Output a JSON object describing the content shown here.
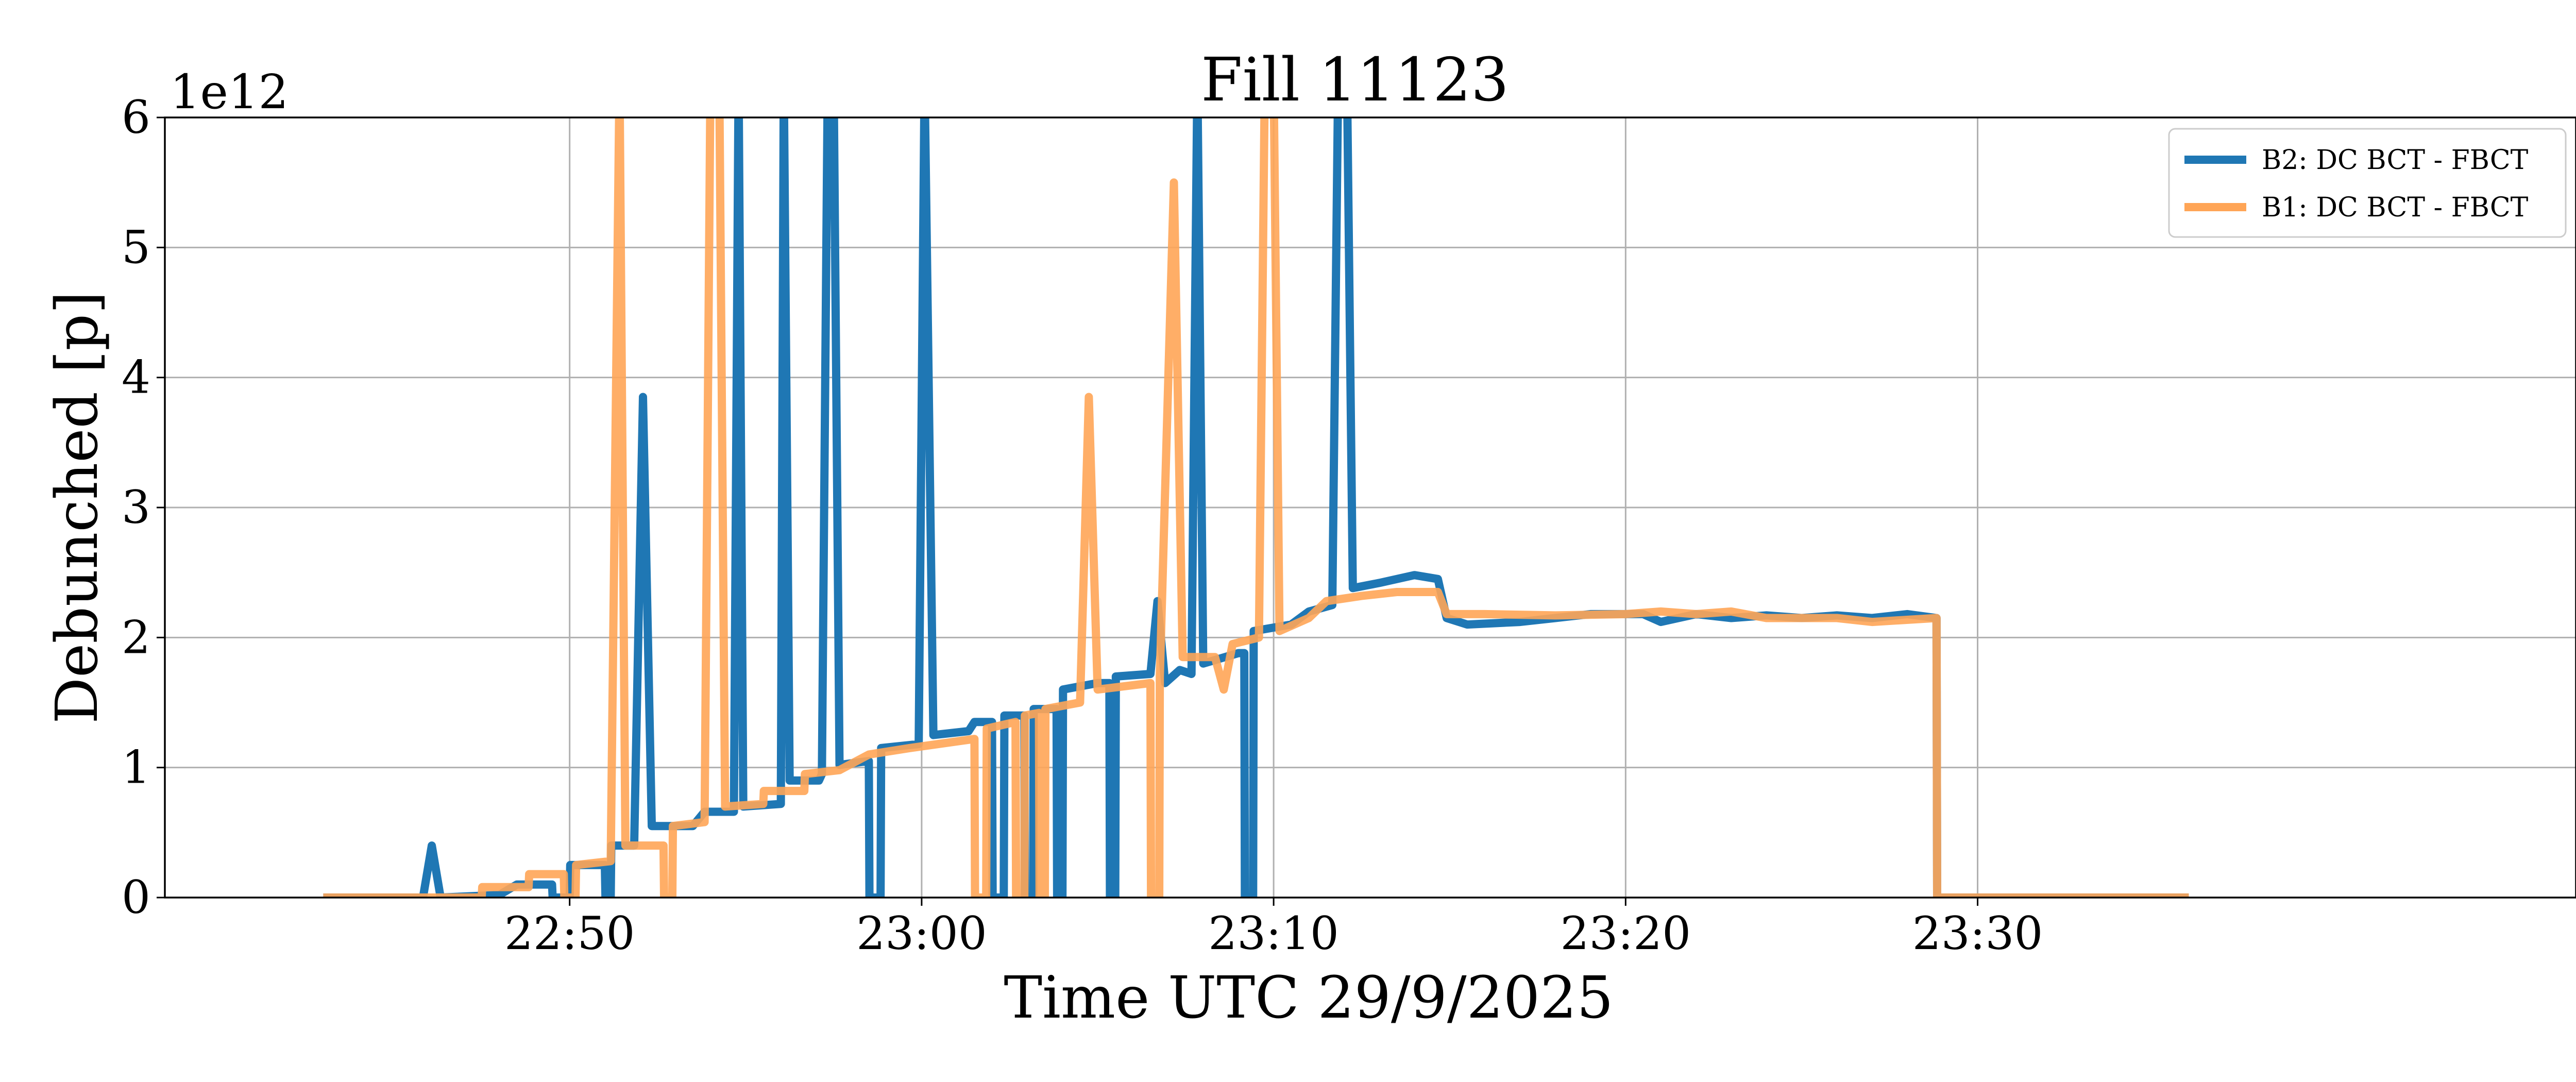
{
  "chart_data": {
    "type": "line",
    "title": "Fill 11123",
    "xlabel": "Time UTC 29/9/2025",
    "ylabel": "Debunched [p]",
    "y_offset_label": "1e12",
    "ylim": [
      0,
      6
    ],
    "xlim": [
      "22:38:30",
      "23:47:00"
    ],
    "yticks": [
      0,
      1,
      2,
      3,
      4,
      5,
      6
    ],
    "ytick_labels": [
      "0",
      "1",
      "2",
      "3",
      "4",
      "5",
      "6"
    ],
    "xticks": [
      "22:50",
      "23:00",
      "23:10",
      "23:20",
      "23:30"
    ],
    "grid": true,
    "legend_position": "top-right",
    "series": [
      {
        "name": "B2: DC BCT - FBCT",
        "color": "#1f77b4",
        "points": [
          [
            "22:43:00",
            0.0
          ],
          [
            "22:45:50",
            0.0
          ],
          [
            "22:46:05",
            0.4
          ],
          [
            "22:46:20",
            0.0
          ],
          [
            "22:48:00",
            0.02
          ],
          [
            "22:48:30",
            0.1
          ],
          [
            "22:49:30",
            0.1
          ],
          [
            "22:49:31",
            0.0
          ],
          [
            "22:50:00",
            0.0
          ],
          [
            "22:50:01",
            0.25
          ],
          [
            "22:51:00",
            0.25
          ],
          [
            "22:51:01",
            0.0
          ],
          [
            "22:51:10",
            0.0
          ],
          [
            "22:51:11",
            0.4
          ],
          [
            "22:51:50",
            0.4
          ],
          [
            "22:52:05",
            3.85
          ],
          [
            "22:52:20",
            0.55
          ],
          [
            "22:53:30",
            0.55
          ],
          [
            "22:53:50",
            0.66
          ],
          [
            "22:54:40",
            0.66
          ],
          [
            "22:54:48",
            6.3
          ],
          [
            "22:54:56",
            0.7
          ],
          [
            "22:56:00",
            0.72
          ],
          [
            "22:56:05",
            6.3
          ],
          [
            "22:56:15",
            0.9
          ],
          [
            "22:57:05",
            0.9
          ],
          [
            "22:57:10",
            0.95
          ],
          [
            "22:57:20",
            6.3
          ],
          [
            "22:57:30",
            6.3
          ],
          [
            "22:57:40",
            1.02
          ],
          [
            "22:58:30",
            1.05
          ],
          [
            "22:58:31",
            0.0
          ],
          [
            "22:58:50",
            0.0
          ],
          [
            "22:58:51",
            1.15
          ],
          [
            "22:59:55",
            1.18
          ],
          [
            "23:00:05",
            6.3
          ],
          [
            "23:00:20",
            1.25
          ],
          [
            "23:01:20",
            1.28
          ],
          [
            "23:01:30",
            1.35
          ],
          [
            "23:02:00",
            1.35
          ],
          [
            "23:02:01",
            0.0
          ],
          [
            "23:02:20",
            0.0
          ],
          [
            "23:02:21",
            1.4
          ],
          [
            "23:02:55",
            1.4
          ],
          [
            "23:02:56",
            0.0
          ],
          [
            "23:03:10",
            0.0
          ],
          [
            "23:03:11",
            1.45
          ],
          [
            "23:03:50",
            1.45
          ],
          [
            "23:03:51",
            0.0
          ],
          [
            "23:04:00",
            0.0
          ],
          [
            "23:04:01",
            1.6
          ],
          [
            "23:05:00",
            1.65
          ],
          [
            "23:05:20",
            1.65
          ],
          [
            "23:05:21",
            0.0
          ],
          [
            "23:05:30",
            0.0
          ],
          [
            "23:05:31",
            1.7
          ],
          [
            "23:06:30",
            1.72
          ],
          [
            "23:06:42",
            2.28
          ],
          [
            "23:06:55",
            1.65
          ],
          [
            "23:07:20",
            1.75
          ],
          [
            "23:07:40",
            1.72
          ],
          [
            "23:07:50",
            6.3
          ],
          [
            "23:08:00",
            1.8
          ],
          [
            "23:09:00",
            1.88
          ],
          [
            "23:09:10",
            1.88
          ],
          [
            "23:09:11",
            0.0
          ],
          [
            "23:09:25",
            0.0
          ],
          [
            "23:09:26",
            2.05
          ],
          [
            "23:10:30",
            2.1
          ],
          [
            "23:11:00",
            2.2
          ],
          [
            "23:11:40",
            2.25
          ],
          [
            "23:11:50",
            6.3
          ],
          [
            "23:12:05",
            6.3
          ],
          [
            "23:12:15",
            2.38
          ],
          [
            "23:13:00",
            2.42
          ],
          [
            "23:13:30",
            2.45
          ],
          [
            "23:14:00",
            2.48
          ],
          [
            "23:14:40",
            2.45
          ],
          [
            "23:14:55",
            2.15
          ],
          [
            "23:15:30",
            2.1
          ],
          [
            "23:17:00",
            2.12
          ],
          [
            "23:18:00",
            2.15
          ],
          [
            "23:19:00",
            2.18
          ],
          [
            "23:20:30",
            2.18
          ],
          [
            "23:21:00",
            2.12
          ],
          [
            "23:22:00",
            2.18
          ],
          [
            "23:23:00",
            2.15
          ],
          [
            "23:24:00",
            2.17
          ],
          [
            "23:25:00",
            2.15
          ],
          [
            "23:26:00",
            2.17
          ],
          [
            "23:27:00",
            2.15
          ],
          [
            "23:28:00",
            2.18
          ],
          [
            "23:28:50",
            2.15
          ],
          [
            "23:28:51",
            0.0
          ],
          [
            "23:36:00",
            0.0
          ]
        ]
      },
      {
        "name": "B1: DC BCT - FBCT",
        "color": "#ffa556",
        "points": [
          [
            "22:43:00",
            0.0
          ],
          [
            "22:47:30",
            0.0
          ],
          [
            "22:47:31",
            0.08
          ],
          [
            "22:48:50",
            0.08
          ],
          [
            "22:48:51",
            0.18
          ],
          [
            "22:49:50",
            0.18
          ],
          [
            "22:49:51",
            0.0
          ],
          [
            "22:50:10",
            0.0
          ],
          [
            "22:50:11",
            0.25
          ],
          [
            "22:51:10",
            0.28
          ],
          [
            "22:51:25",
            6.3
          ],
          [
            "22:51:35",
            0.4
          ],
          [
            "22:52:40",
            0.4
          ],
          [
            "22:52:41",
            0.0
          ],
          [
            "22:52:55",
            0.0
          ],
          [
            "22:52:56",
            0.55
          ],
          [
            "22:53:50",
            0.58
          ],
          [
            "22:54:00",
            6.3
          ],
          [
            "22:54:15",
            6.3
          ],
          [
            "22:54:25",
            0.7
          ],
          [
            "22:55:30",
            0.72
          ],
          [
            "22:55:31",
            0.82
          ],
          [
            "22:56:40",
            0.82
          ],
          [
            "22:56:41",
            0.95
          ],
          [
            "22:57:40",
            0.98
          ],
          [
            "22:58:30",
            1.1
          ],
          [
            "22:59:40",
            1.15
          ],
          [
            "23:01:30",
            1.22
          ],
          [
            "23:01:31",
            0.0
          ],
          [
            "23:01:50",
            0.0
          ],
          [
            "23:01:51",
            1.3
          ],
          [
            "23:02:40",
            1.35
          ],
          [
            "23:02:41",
            0.0
          ],
          [
            "23:02:55",
            0.0
          ],
          [
            "23:02:56",
            1.4
          ],
          [
            "23:03:20",
            1.42
          ],
          [
            "23:03:21",
            0.0
          ],
          [
            "23:03:30",
            0.0
          ],
          [
            "23:03:31",
            1.45
          ],
          [
            "23:04:30",
            1.5
          ],
          [
            "23:04:45",
            3.85
          ],
          [
            "23:05:00",
            1.6
          ],
          [
            "23:06:30",
            1.65
          ],
          [
            "23:06:31",
            0.0
          ],
          [
            "23:06:45",
            0.0
          ],
          [
            "23:06:46",
            1.7
          ],
          [
            "23:07:10",
            5.5
          ],
          [
            "23:07:25",
            1.85
          ],
          [
            "23:08:20",
            1.85
          ],
          [
            "23:08:35",
            1.6
          ],
          [
            "23:08:50",
            1.95
          ],
          [
            "23:09:35",
            2.0
          ],
          [
            "23:09:45",
            6.3
          ],
          [
            "23:10:00",
            6.3
          ],
          [
            "23:10:10",
            2.05
          ],
          [
            "23:11:00",
            2.15
          ],
          [
            "23:11:30",
            2.28
          ],
          [
            "23:12:30",
            2.32
          ],
          [
            "23:13:30",
            2.35
          ],
          [
            "23:14:40",
            2.35
          ],
          [
            "23:14:55",
            2.18
          ],
          [
            "23:16:00",
            2.18
          ],
          [
            "23:18:00",
            2.17
          ],
          [
            "23:20:00",
            2.18
          ],
          [
            "23:21:00",
            2.2
          ],
          [
            "23:22:00",
            2.18
          ],
          [
            "23:23:00",
            2.2
          ],
          [
            "23:24:00",
            2.15
          ],
          [
            "23:26:00",
            2.15
          ],
          [
            "23:27:00",
            2.12
          ],
          [
            "23:28:50",
            2.15
          ],
          [
            "23:28:51",
            0.0
          ],
          [
            "23:36:00",
            0.0
          ]
        ]
      }
    ]
  }
}
